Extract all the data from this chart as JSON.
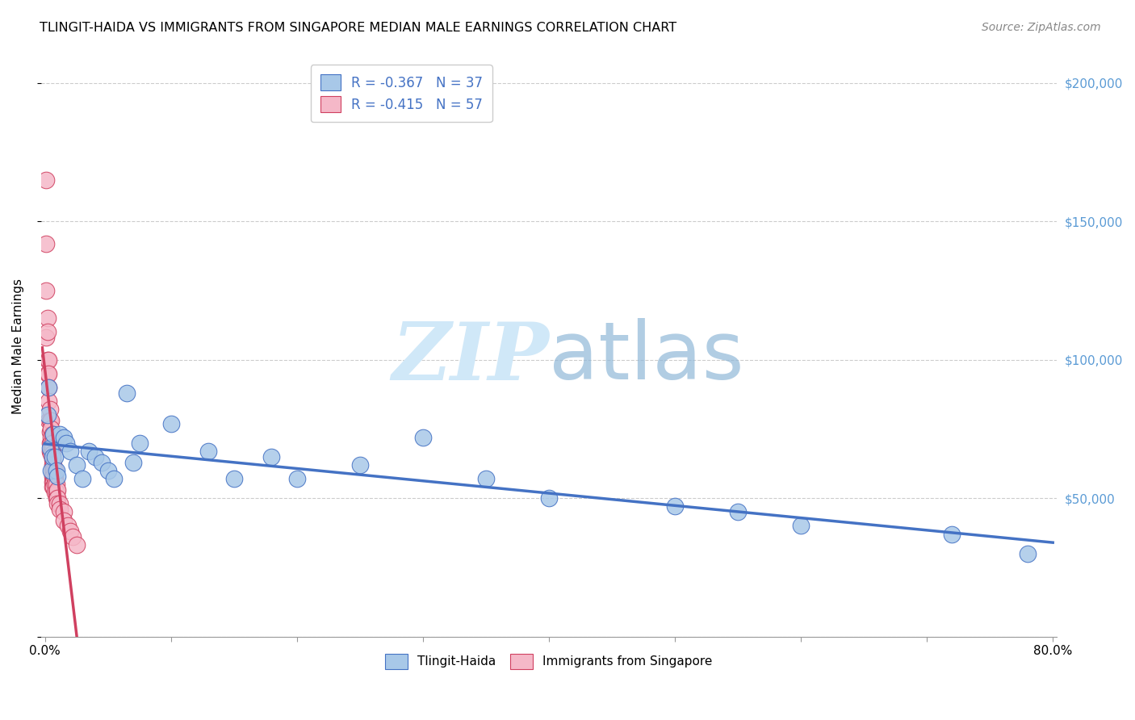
{
  "title": "TLINGIT-HAIDA VS IMMIGRANTS FROM SINGAPORE MEDIAN MALE EARNINGS CORRELATION CHART",
  "source": "Source: ZipAtlas.com",
  "ylabel": "Median Male Earnings",
  "legend_r1": "R = -0.367",
  "legend_n1": "N = 37",
  "legend_r2": "R = -0.415",
  "legend_n2": "N = 57",
  "color_blue": "#a8c8e8",
  "color_pink": "#f5b8c8",
  "color_blue_dark": "#4472c4",
  "color_pink_dark": "#d04060",
  "color_text_blue": "#4472c4",
  "color_right_axis": "#5b9bd5",
  "watermark_color": "#d0e8f8",
  "background_color": "#ffffff",
  "grid_color": "#cccccc",
  "tlingit_x": [
    0.002,
    0.003,
    0.004,
    0.005,
    0.006,
    0.007,
    0.008,
    0.009,
    0.01,
    0.012,
    0.015,
    0.017,
    0.02,
    0.025,
    0.03,
    0.035,
    0.04,
    0.045,
    0.05,
    0.055,
    0.065,
    0.07,
    0.075,
    0.1,
    0.13,
    0.15,
    0.18,
    0.2,
    0.25,
    0.3,
    0.35,
    0.4,
    0.5,
    0.55,
    0.6,
    0.72,
    0.78
  ],
  "tlingit_y": [
    80000,
    90000,
    68000,
    60000,
    65000,
    73000,
    65000,
    60000,
    58000,
    73000,
    72000,
    70000,
    67000,
    62000,
    57000,
    67000,
    65000,
    63000,
    60000,
    57000,
    88000,
    63000,
    70000,
    77000,
    67000,
    57000,
    65000,
    57000,
    62000,
    72000,
    57000,
    50000,
    47000,
    45000,
    40000,
    37000,
    30000
  ],
  "singapore_x": [
    0.001,
    0.001,
    0.001,
    0.001,
    0.002,
    0.002,
    0.002,
    0.002,
    0.003,
    0.003,
    0.003,
    0.003,
    0.003,
    0.004,
    0.004,
    0.004,
    0.004,
    0.004,
    0.005,
    0.005,
    0.005,
    0.005,
    0.005,
    0.005,
    0.006,
    0.006,
    0.006,
    0.006,
    0.006,
    0.006,
    0.006,
    0.006,
    0.006,
    0.006,
    0.007,
    0.007,
    0.007,
    0.007,
    0.007,
    0.008,
    0.008,
    0.008,
    0.008,
    0.009,
    0.009,
    0.009,
    0.01,
    0.01,
    0.01,
    0.012,
    0.012,
    0.015,
    0.015,
    0.018,
    0.02,
    0.022,
    0.025
  ],
  "singapore_y": [
    165000,
    142000,
    125000,
    108000,
    115000,
    110000,
    100000,
    95000,
    100000,
    95000,
    90000,
    85000,
    78000,
    82000,
    78000,
    74000,
    70000,
    67000,
    78000,
    75000,
    72000,
    70000,
    68000,
    66000,
    73000,
    70000,
    68000,
    66000,
    64000,
    62000,
    60000,
    58000,
    56000,
    54000,
    62000,
    60000,
    58000,
    56000,
    54000,
    60000,
    57000,
    55000,
    52000,
    55000,
    52000,
    50000,
    53000,
    50000,
    48000,
    48000,
    46000,
    45000,
    42000,
    40000,
    38000,
    36000,
    33000
  ],
  "xmin": 0.0,
  "xmax": 0.8,
  "ymin": 0,
  "ymax": 210000,
  "xtick_positions": [
    0.0,
    0.1,
    0.2,
    0.3,
    0.4,
    0.5,
    0.6,
    0.7,
    0.8
  ],
  "ytick_positions": [
    0,
    50000,
    100000,
    150000,
    200000
  ]
}
